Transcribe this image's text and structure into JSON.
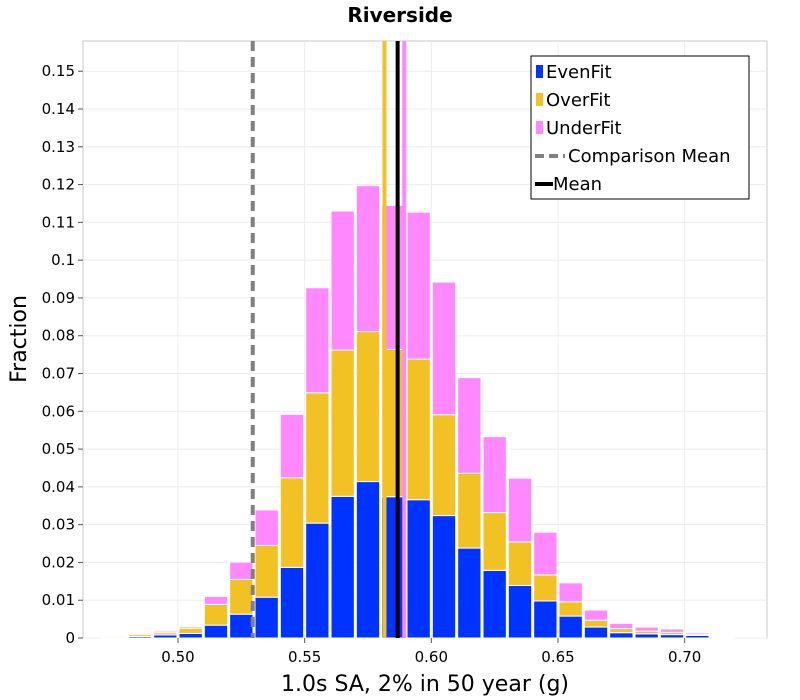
{
  "chart_data": {
    "type": "bar",
    "stacked": true,
    "title": "Riverside",
    "xlabel": "1.0s SA, 2% in 50 year (g)",
    "ylabel": "Fraction",
    "xlim": [
      0.4625,
      0.7325
    ],
    "ylim": [
      0,
      0.158
    ],
    "xticks": [
      0.5,
      0.55,
      0.6,
      0.65,
      0.7
    ],
    "xtick_labels": [
      "0.50",
      "0.55",
      "0.60",
      "0.65",
      "0.70"
    ],
    "yticks": [
      0,
      0.01,
      0.02,
      0.03,
      0.04,
      0.05,
      0.06,
      0.07,
      0.08,
      0.09,
      0.1,
      0.11,
      0.12,
      0.13,
      0.14,
      0.15
    ],
    "ytick_labels": [
      "0",
      "0.01",
      "0.02",
      "0.03",
      "0.04",
      "0.05",
      "0.06",
      "0.07",
      "0.08",
      "0.09",
      "0.1",
      "0.11",
      "0.12",
      "0.13",
      "0.14",
      "0.15"
    ],
    "bin_width": 0.01,
    "x": [
      0.475,
      0.485,
      0.495,
      0.505,
      0.515,
      0.525,
      0.535,
      0.545,
      0.555,
      0.565,
      0.575,
      0.585,
      0.595,
      0.605,
      0.615,
      0.625,
      0.635,
      0.645,
      0.655,
      0.665,
      0.675,
      0.685,
      0.695,
      0.705,
      0.715
    ],
    "series": [
      {
        "name": "EvenFit",
        "color": "#0033ff",
        "values": [
          0.0002,
          0.0004,
          0.0008,
          0.0012,
          0.0034,
          0.0063,
          0.0108,
          0.0187,
          0.0304,
          0.0375,
          0.0414,
          0.0374,
          0.0366,
          0.0324,
          0.0238,
          0.0179,
          0.0139,
          0.0098,
          0.0058,
          0.0029,
          0.0014,
          0.0011,
          0.0009,
          0.0007,
          0.0002
        ]
      },
      {
        "name": "OverFit",
        "color": "#f2c224",
        "values": [
          0.0003,
          0.0005,
          0.0006,
          0.0014,
          0.0055,
          0.0092,
          0.0137,
          0.0237,
          0.0345,
          0.0387,
          0.0397,
          0.039,
          0.0372,
          0.0267,
          0.0198,
          0.0153,
          0.0115,
          0.0069,
          0.0038,
          0.0018,
          0.0011,
          0.0007,
          0.0006,
          0.0003,
          0.0001
        ]
      },
      {
        "name": "UnderFit",
        "color": "#ff88ff",
        "values": [
          0.0002,
          0.0003,
          0.0004,
          0.0004,
          0.0021,
          0.0046,
          0.0094,
          0.0168,
          0.0278,
          0.0368,
          0.0386,
          0.0381,
          0.0389,
          0.0351,
          0.0253,
          0.0201,
          0.0169,
          0.0113,
          0.005,
          0.0027,
          0.0014,
          0.0011,
          0.0009,
          0.0004,
          0.0001
        ]
      }
    ],
    "vertical_lines": [
      {
        "name": "Comparison Mean",
        "x": 0.5295,
        "color": "#808080",
        "style": "dashed"
      },
      {
        "name": "Mean",
        "x": 0.5867,
        "color": "#000000",
        "style": "solid"
      },
      {
        "name": "OverFit Mean",
        "x": 0.5815,
        "color": "#f2c224",
        "style": "solid"
      },
      {
        "name": "UnderFit Mean",
        "x": 0.5893,
        "color": "#ff88ff",
        "style": "solid"
      }
    ],
    "legend": {
      "placement": "top-right",
      "entries": [
        {
          "label": "EvenFit",
          "kind": "swatch",
          "color": "#0033ff"
        },
        {
          "label": "OverFit",
          "kind": "swatch",
          "color": "#f2c224"
        },
        {
          "label": "UnderFit",
          "kind": "swatch",
          "color": "#ff88ff"
        },
        {
          "label": "Comparison Mean",
          "kind": "dashed-line",
          "color": "#808080"
        },
        {
          "label": "Mean",
          "kind": "line",
          "color": "#000000"
        }
      ]
    },
    "grid": true
  }
}
